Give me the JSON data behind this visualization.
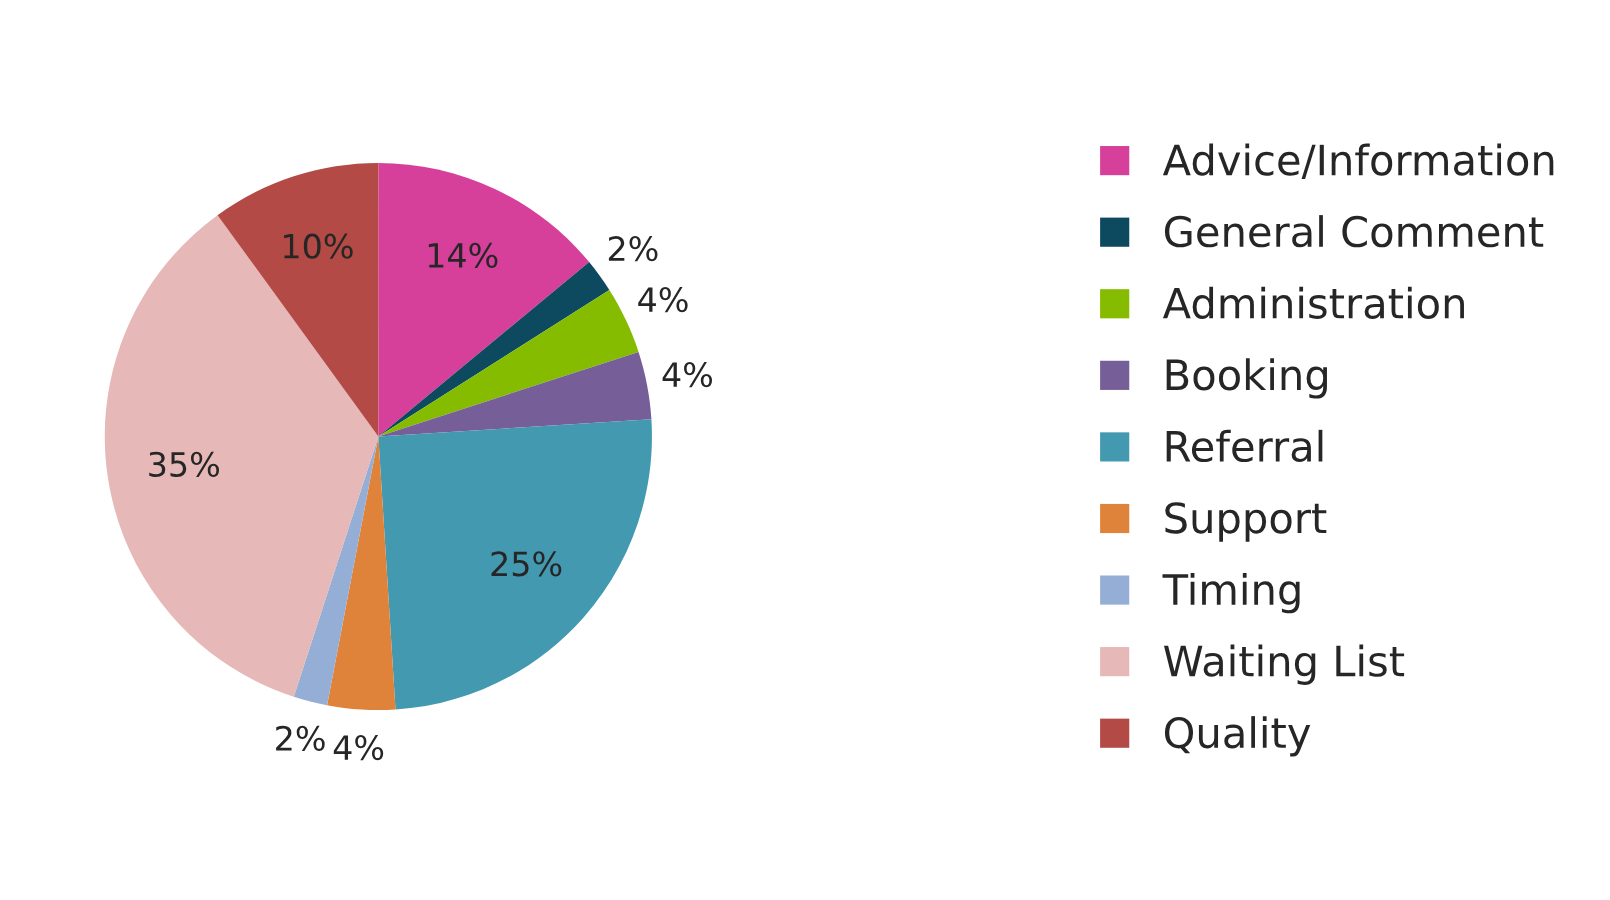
{
  "chart_data": {
    "type": "pie",
    "categories": [
      "Advice/Information",
      "General Comment",
      "Administration",
      "Booking",
      "Referral",
      "Support",
      "Timing",
      "Waiting List",
      "Quality"
    ],
    "values": [
      14,
      2,
      4,
      4,
      25,
      4,
      2,
      35,
      10
    ],
    "colors": [
      "#d6409b",
      "#0e4a5f",
      "#86bc00",
      "#765e99",
      "#4299b0",
      "#e0833a",
      "#95aed6",
      "#e6b8b7",
      "#b34a46"
    ],
    "value_labels": [
      "14%",
      "2%",
      "4%",
      "4%",
      "25%",
      "4%",
      "2%",
      "35%",
      "10%"
    ],
    "legend": "right"
  }
}
